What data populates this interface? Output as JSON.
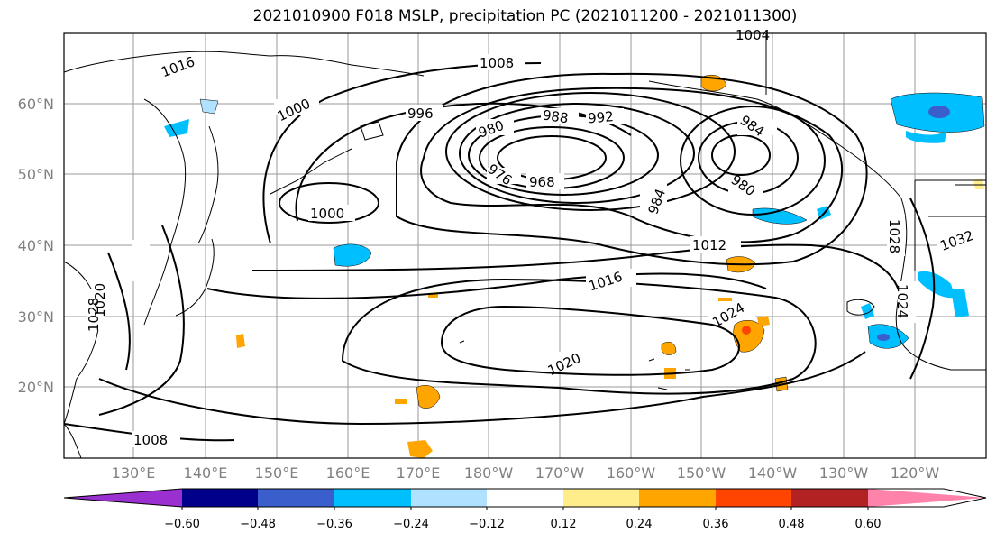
{
  "title": "2021010900 F018 MSLP, precipitation PC (2021011200 - 2021011300)",
  "lat_labels": [
    "60°N",
    "50°N",
    "40°N",
    "30°N",
    "20°N"
  ],
  "lon_labels": [
    "130°E",
    "140°E",
    "150°E",
    "160°E",
    "170°E",
    "180°W",
    "170°W",
    "160°W",
    "150°W",
    "140°W",
    "130°W",
    "120°W"
  ],
  "contour_labels": [
    "1016",
    "1008",
    "1004",
    "1000",
    "996",
    "988",
    "992",
    "980",
    "968",
    "976",
    "984",
    "984",
    "980",
    "1000",
    "1012",
    "1016",
    "1020",
    "1024",
    "1020",
    "1028",
    "1008",
    "1024",
    "1028",
    "1032"
  ],
  "colorbar": {
    "ticks": [
      "−0.60",
      "−0.48",
      "−0.36",
      "−0.24",
      "−0.12",
      "0.12",
      "0.24",
      "0.36",
      "0.48",
      "0.60"
    ],
    "colors": [
      "#9b30d0",
      "#00008b",
      "#3a5fcd",
      "#00bfff",
      "#b0e2ff",
      "#ffffff",
      "#ffec8b",
      "#ffa500",
      "#ff4500",
      "#b22222",
      "#ff82ab"
    ]
  }
}
